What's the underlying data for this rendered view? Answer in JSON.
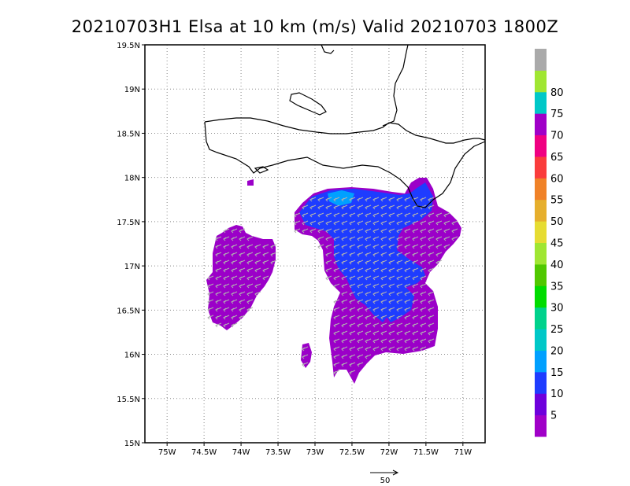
{
  "title": "20210703H1 Elsa at 10 km (m/s) Valid 20210703 1800Z",
  "map": {
    "lon_range": [
      -75.3,
      -70.7
    ],
    "lat_range": [
      15.0,
      19.5
    ],
    "x_ticks": [
      {
        "lon": -75.0,
        "label": "75W"
      },
      {
        "lon": -74.5,
        "label": "74.5W"
      },
      {
        "lon": -74.0,
        "label": "74W"
      },
      {
        "lon": -73.5,
        "label": "73.5W"
      },
      {
        "lon": -73.0,
        "label": "73W"
      },
      {
        "lon": -72.5,
        "label": "72.5W"
      },
      {
        "lon": -72.0,
        "label": "72W"
      },
      {
        "lon": -71.5,
        "label": "71.5W"
      },
      {
        "lon": -71.0,
        "label": "71W"
      }
    ],
    "y_ticks": [
      {
        "lat": 19.5,
        "label": "19.5N"
      },
      {
        "lat": 19.0,
        "label": "19N"
      },
      {
        "lat": 18.5,
        "label": "18.5N"
      },
      {
        "lat": 18.0,
        "label": "18N"
      },
      {
        "lat": 17.5,
        "label": "17.5N"
      },
      {
        "lat": 17.0,
        "label": "17N"
      },
      {
        "lat": 16.5,
        "label": "16.5N"
      },
      {
        "lat": 16.0,
        "label": "16N"
      },
      {
        "lat": 15.5,
        "label": "15.5N"
      },
      {
        "lat": 15.0,
        "label": "15N"
      }
    ],
    "grid": true,
    "wind_field": {
      "west_patch": {
        "center_lon": -74.05,
        "center_lat": 16.9,
        "dominant_speed": "5"
      },
      "main_patch": {
        "center_lon": -72.1,
        "center_lat": 17.0,
        "dominant_speed": "5-15"
      },
      "vector_direction": "from east-northeast (westward flow)"
    }
  },
  "colorbar": {
    "labels": [
      "5",
      "10",
      "15",
      "20",
      "25",
      "30",
      "35",
      "40",
      "45",
      "50",
      "55",
      "60",
      "65",
      "70",
      "75",
      "80"
    ],
    "colors": [
      "#a000c8",
      "#6e00dc",
      "#1e3cff",
      "#00a0ff",
      "#00c8c8",
      "#00d28c",
      "#00dc00",
      "#50c800",
      "#a0e632",
      "#e6dc32",
      "#e6af2d",
      "#f08228",
      "#fa3c3c",
      "#f00082",
      "#a000c8",
      "#00c8c8",
      "#a0e632",
      "#aaaaaa"
    ]
  },
  "reference_vector": {
    "label": "50"
  }
}
